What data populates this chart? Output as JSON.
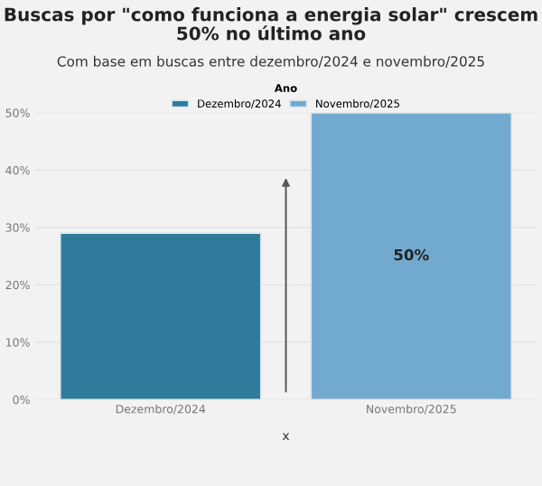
{
  "chart_data": {
    "type": "bar",
    "title": "Buscas por \"como funciona a energia solar\" crescem\n50% no último ano",
    "subtitle": "Com base em buscas entre dezembro/2024 e novembro/2025",
    "xlabel": "x",
    "legend_title": "Ano",
    "legend": "top",
    "categories": [
      "Dezembro/2024",
      "Novembro/2025"
    ],
    "series": [
      {
        "name": "Dezembro/2024",
        "color": "#2e7b9c",
        "values": [
          29,
          null
        ]
      },
      {
        "name": "Novembro/2025",
        "color": "#72aacf",
        "values": [
          null,
          50
        ],
        "value_labels": [
          null,
          "50%"
        ]
      }
    ],
    "ylim": [
      0,
      50
    ],
    "yticks": [
      {
        "value": 0,
        "label": "0%"
      },
      {
        "value": 10,
        "label": "10%"
      },
      {
        "value": 20,
        "label": "20%"
      },
      {
        "value": 30,
        "label": "30%"
      },
      {
        "value": 40,
        "label": "40%"
      },
      {
        "value": 50,
        "label": "50%"
      }
    ],
    "grid": "y"
  }
}
